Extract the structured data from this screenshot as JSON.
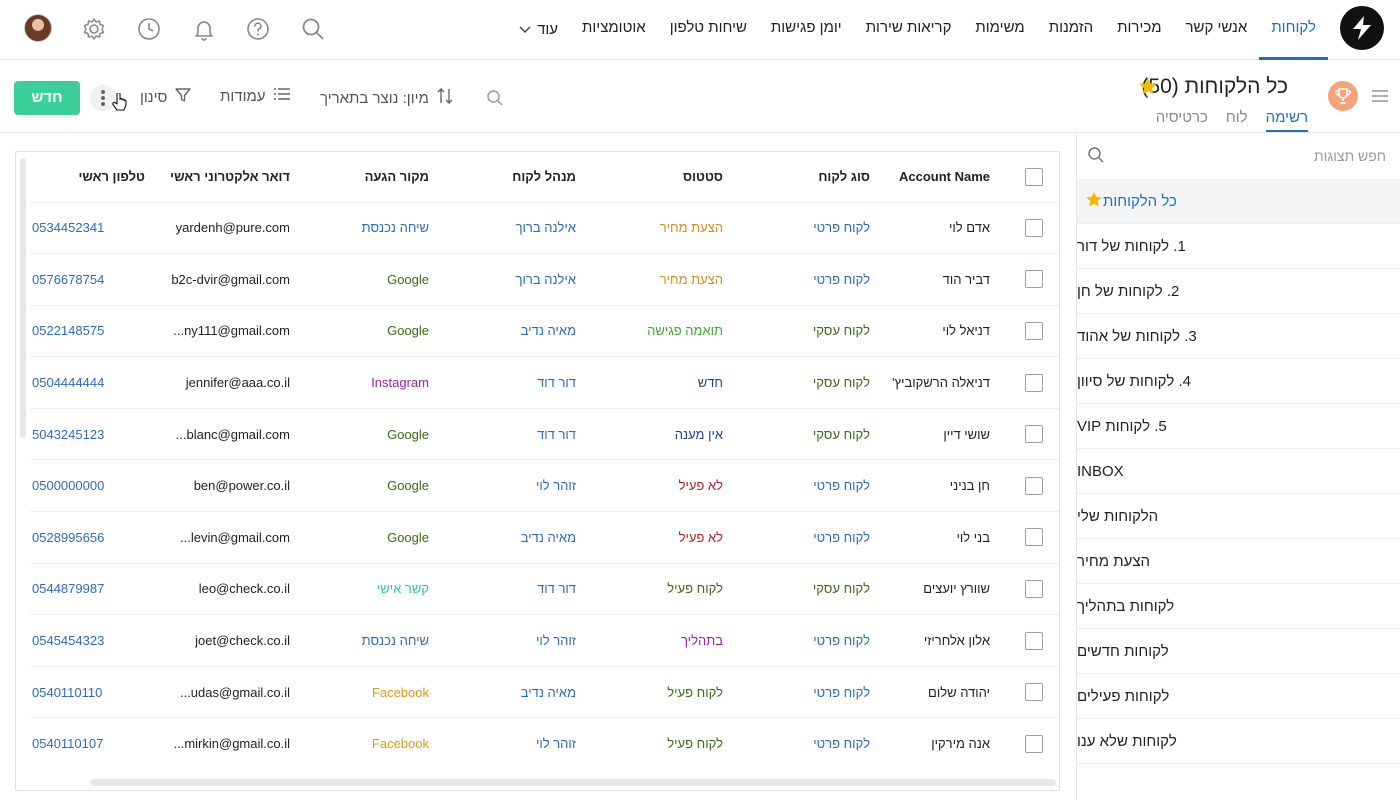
{
  "nav": {
    "items": [
      "לקוחות",
      "אנשי קשר",
      "מכירות",
      "הזמנות",
      "משימות",
      "קריאות שירות",
      "יומן פגישות",
      "שיחות טלפון",
      "אוטומציות"
    ],
    "more_label": "עוד"
  },
  "header": {
    "title": "כל הלקוחות (50)",
    "tabs": [
      "רשימה",
      "לוח",
      "כרטיסיה"
    ],
    "sort_label": "מיון: נוצר בתאריך",
    "columns_label": "עמודות",
    "filter_label": "סינון",
    "new_button": "חדש"
  },
  "sidebar": {
    "search_placeholder": "חפש תצוגות",
    "items": [
      "כל הלקוחות",
      "1. לקוחות של דור",
      "2. לקוחות של חן",
      "3. לקוחות של אהוד",
      "4. לקוחות של סיוון",
      "5. לקוחות VIP",
      "INBOX",
      "הלקוחות שלי",
      "הצעת מחיר",
      "לקוחות בתהליך",
      "לקוחות חדשים",
      "לקוחות פעילים",
      "לקוחות שלא ענו"
    ]
  },
  "table": {
    "columns": [
      "Account Name",
      "סוג לקוח",
      "סטטוס",
      "מנהל לקוח",
      "מקור הגעה",
      "דואר אלקטרוני ראשי",
      "טלפון ראשי"
    ],
    "rows": [
      {
        "name": "אדם לוי",
        "type": "לקוח פרטי",
        "type_c": "blue",
        "status": "הצעת מחיר",
        "status_c": "orange",
        "manager": "אילנה ברוך",
        "source": "שיחה נכנסת",
        "source_c": "blue",
        "email": "yardenh@pure.com",
        "phone": "0534452341"
      },
      {
        "name": "דביר הוד",
        "type": "לקוח פרטי",
        "type_c": "blue",
        "status": "הצעת מחיר",
        "status_c": "orange",
        "manager": "אילנה ברוך",
        "source": "Google",
        "source_c": "olive",
        "email": "b2c-dvir@gmail.com",
        "phone": "0576678754"
      },
      {
        "name": "דניאל לוי",
        "type": "לקוח עסקי",
        "type_c": "olive",
        "status": "תואמה פגישה",
        "status_c": "green",
        "manager": "מאיה נדיב",
        "source": "Google",
        "source_c": "olive",
        "email": "...ny111@gmail.com",
        "phone": "0522148575"
      },
      {
        "name": "דניאלה הרשקוביץ'",
        "type": "לקוח עסקי",
        "type_c": "olive",
        "status": "חדש",
        "status_c": "navy",
        "manager": "דור דוד",
        "source": "Instagram",
        "source_c": "purple",
        "email": "jennifer@aaa.co.il",
        "phone": "0504444444"
      },
      {
        "name": "שושי דיין",
        "type": "לקוח עסקי",
        "type_c": "olive",
        "status": "אין מענה",
        "status_c": "navy",
        "manager": "דור דוד",
        "source": "Google",
        "source_c": "olive",
        "email": "...blanc@gmail.com",
        "phone": "5043245123"
      },
      {
        "name": "חן בניני",
        "type": "לקוח פרטי",
        "type_c": "blue",
        "status": "לא פעיל",
        "status_c": "red",
        "manager": "זוהר לוי",
        "source": "Google",
        "source_c": "olive",
        "email": "ben@power.co.il",
        "phone": "0500000000"
      },
      {
        "name": "בני לוי",
        "type": "לקוח פרטי",
        "type_c": "blue",
        "status": "לא פעיל",
        "status_c": "red",
        "manager": "מאיה נדיב",
        "source": "Google",
        "source_c": "olive",
        "email": "...levin@gmail.com",
        "phone": "0528995656"
      },
      {
        "name": "שוורץ יועצים",
        "type": "לקוח עסקי",
        "type_c": "olive",
        "status": "לקוח פעיל",
        "status_c": "olive",
        "manager": "דור דוד",
        "source": "קשר אישי",
        "source_c": "teal",
        "email": "leo@check.co.il",
        "phone": "0544879987"
      },
      {
        "name": "אלון אלחריזי",
        "type": "לקוח פרטי",
        "type_c": "blue",
        "status": "בתהליך",
        "status_c": "purple",
        "manager": "זוהר לוי",
        "source": "שיחה נכנסת",
        "source_c": "blue",
        "email": "joet@check.co.il",
        "phone": "0545454323"
      },
      {
        "name": "יהודה שלום",
        "type": "לקוח פרטי",
        "type_c": "blue",
        "status": "לקוח פעיל",
        "status_c": "olive",
        "manager": "מאיה נדיב",
        "source": "Facebook",
        "source_c": "amber",
        "email": "...udas@gmail.co.il",
        "phone": "0540110110"
      },
      {
        "name": "אנה מירקין",
        "type": "לקוח פרטי",
        "type_c": "blue",
        "status": "לקוח פעיל",
        "status_c": "olive",
        "manager": "זוהר לוי",
        "source": "Facebook",
        "source_c": "amber",
        "email": "...mirkin@gmail.co.il",
        "phone": "0540110107"
      }
    ]
  },
  "icons": {
    "logo": "brand-logo-icon",
    "search": "search-icon",
    "help": "help-icon",
    "bell": "bell-icon",
    "history": "clock-icon",
    "settings": "gear-icon",
    "trophy": "trophy-icon",
    "star": "star-icon"
  },
  "colors": {
    "accent": "#1e6fc9",
    "new_button": "#3ccf9a",
    "star": "#f5b800",
    "trophy_bg": "#f4a37a"
  }
}
